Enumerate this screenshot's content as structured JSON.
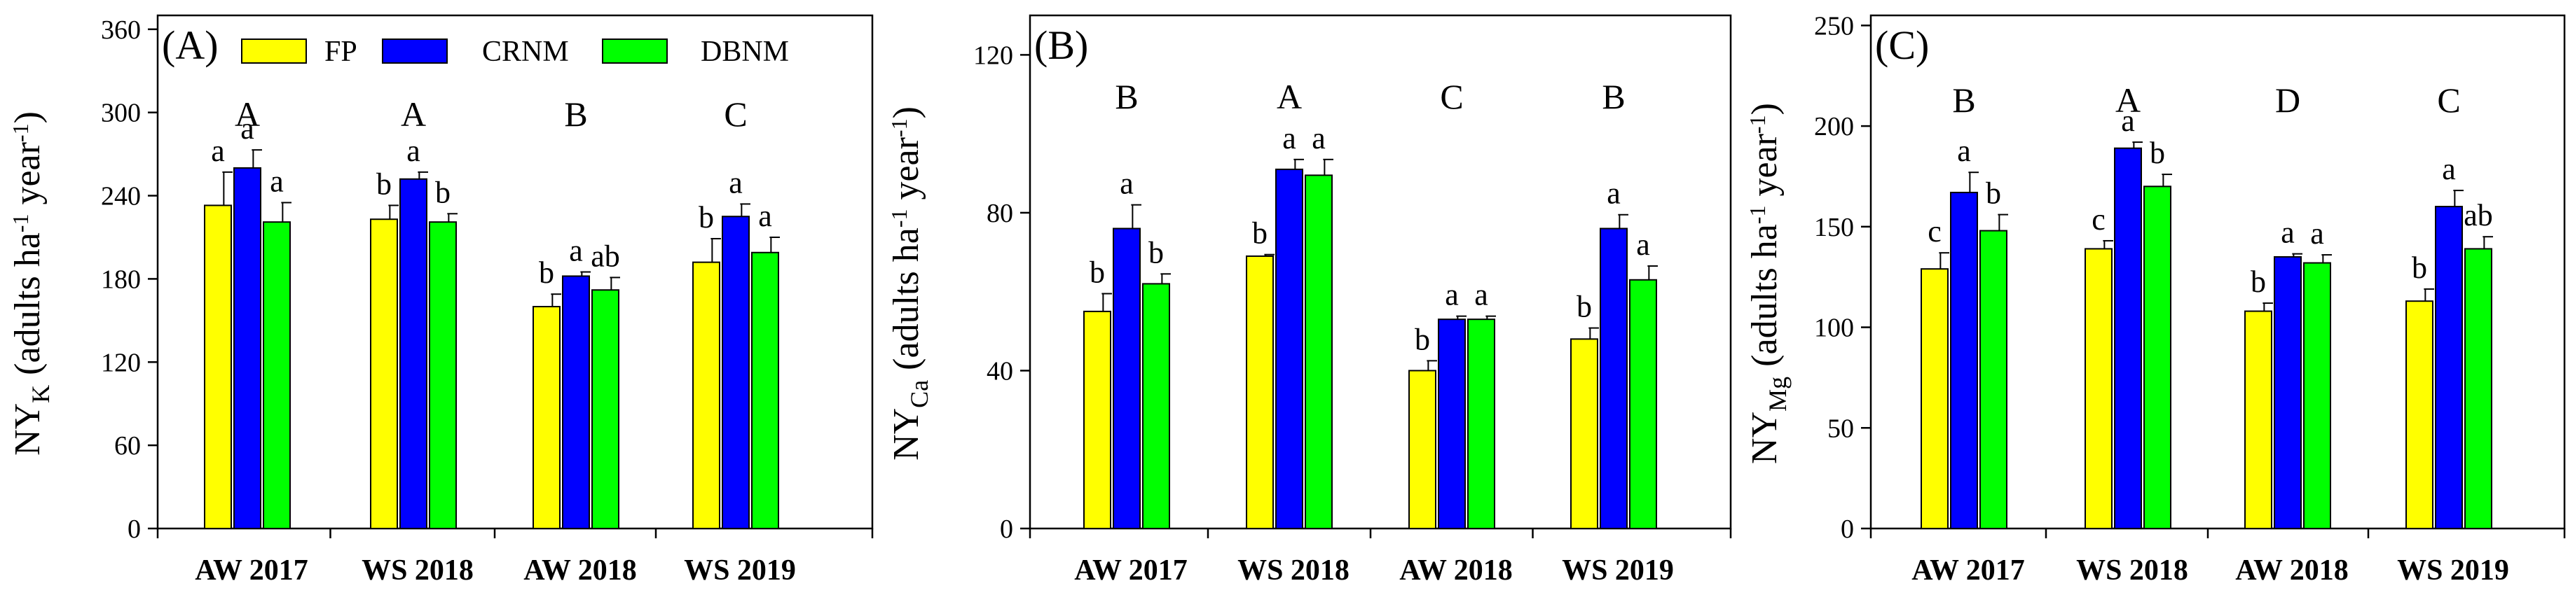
{
  "colors": {
    "FP": "#ffff00",
    "CRNM": "#0000ff",
    "DBNM": "#00ff00",
    "axis": "#000000"
  },
  "legend": [
    {
      "name": "FP",
      "color": "#ffff00"
    },
    {
      "name": "CRNM",
      "color": "#0000ff"
    },
    {
      "name": "DBNM",
      "color": "#00ff00"
    }
  ],
  "chart_data": [
    {
      "type": "bar",
      "panel_label": "(A)",
      "ylabel_main": "NY",
      "ylabel_sub": "K",
      "ylabel_units": "(adults ha",
      "ylabel_exp1": "-1",
      "ylabel_mid": " year",
      "ylabel_exp2": "-1",
      "ylabel_close": ")",
      "ylim": [
        0,
        370
      ],
      "yticks": [
        "0",
        "60",
        "120",
        "180",
        "240",
        "300",
        "360"
      ],
      "ytick_values": [
        0,
        60,
        120,
        180,
        240,
        300,
        360
      ],
      "categories": [
        "AW 2017",
        "WS 2018",
        "AW 2018",
        "WS 2019"
      ],
      "group_letters": [
        "A",
        "A",
        "B",
        "C"
      ],
      "series": [
        {
          "name": "FP",
          "values": [
            233,
            223,
            160,
            192
          ],
          "errors": [
            24,
            10,
            9,
            17
          ],
          "letters": [
            "a",
            "b",
            "b",
            "b"
          ]
        },
        {
          "name": "CRNM",
          "values": [
            260,
            252,
            182,
            225
          ],
          "errors": [
            13,
            5,
            3,
            9
          ],
          "letters": [
            "a",
            "a",
            "a",
            "a"
          ]
        },
        {
          "name": "DBNM",
          "values": [
            221,
            221,
            172,
            199
          ],
          "errors": [
            14,
            6,
            9,
            11
          ],
          "letters": [
            "a",
            "b",
            "ab",
            "a"
          ]
        }
      ]
    },
    {
      "type": "bar",
      "panel_label": "(B)",
      "ylabel_main": "NY",
      "ylabel_sub": "Ca",
      "ylabel_units": "(adults ha",
      "ylabel_exp1": "-1",
      "ylabel_mid": " year",
      "ylabel_exp2": "-1",
      "ylabel_close": ")",
      "ylim": [
        0,
        130
      ],
      "yticks": [
        "0",
        "40",
        "80",
        "120"
      ],
      "ytick_values": [
        0,
        40,
        80,
        120
      ],
      "categories": [
        "AW 2017",
        "WS 2018",
        "AW 2018",
        "WS 2019"
      ],
      "group_letters": [
        "B",
        "A",
        "C",
        "B"
      ],
      "series": [
        {
          "name": "FP",
          "values": [
            55,
            69,
            40,
            48
          ],
          "errors": [
            4.5,
            0.4,
            2.5,
            2.8
          ],
          "letters": [
            "b",
            "b",
            "b",
            "b"
          ]
        },
        {
          "name": "CRNM",
          "values": [
            76,
            91,
            53,
            76
          ],
          "errors": [
            6,
            2.5,
            0.8,
            3.5
          ],
          "letters": [
            "a",
            "a",
            "a",
            "a"
          ]
        },
        {
          "name": "DBNM",
          "values": [
            62,
            89.5,
            53,
            63
          ],
          "errors": [
            2.5,
            4,
            0.8,
            3.5
          ],
          "letters": [
            "b",
            "a",
            "a",
            "a"
          ]
        }
      ]
    },
    {
      "type": "bar",
      "panel_label": "(C)",
      "ylabel_main": "NY",
      "ylabel_sub": "Mg",
      "ylabel_units": "(adults ha",
      "ylabel_exp1": "-1",
      "ylabel_mid": " year",
      "ylabel_exp2": "-1",
      "ylabel_close": ")",
      "ylim": [
        0,
        255
      ],
      "yticks": [
        "0",
        "50",
        "100",
        "150",
        "200",
        "250"
      ],
      "ytick_values": [
        0,
        50,
        100,
        150,
        200,
        250
      ],
      "categories": [
        "AW 2017",
        "WS 2018",
        "AW 2018",
        "WS 2019"
      ],
      "group_letters": [
        "B",
        "A",
        "D",
        "C"
      ],
      "series": [
        {
          "name": "FP",
          "values": [
            129,
            139,
            108,
            113
          ],
          "errors": [
            8,
            4,
            4,
            6
          ],
          "letters": [
            "c",
            "c",
            "b",
            "b"
          ]
        },
        {
          "name": "CRNM",
          "values": [
            167,
            189,
            135,
            160
          ],
          "errors": [
            10,
            3,
            1.5,
            8
          ],
          "letters": [
            "a",
            "a",
            "a",
            "a"
          ]
        },
        {
          "name": "DBNM",
          "values": [
            148,
            170,
            132,
            139
          ],
          "errors": [
            8,
            6,
            4,
            6
          ],
          "letters": [
            "b",
            "b",
            "a",
            "ab"
          ]
        }
      ]
    }
  ]
}
